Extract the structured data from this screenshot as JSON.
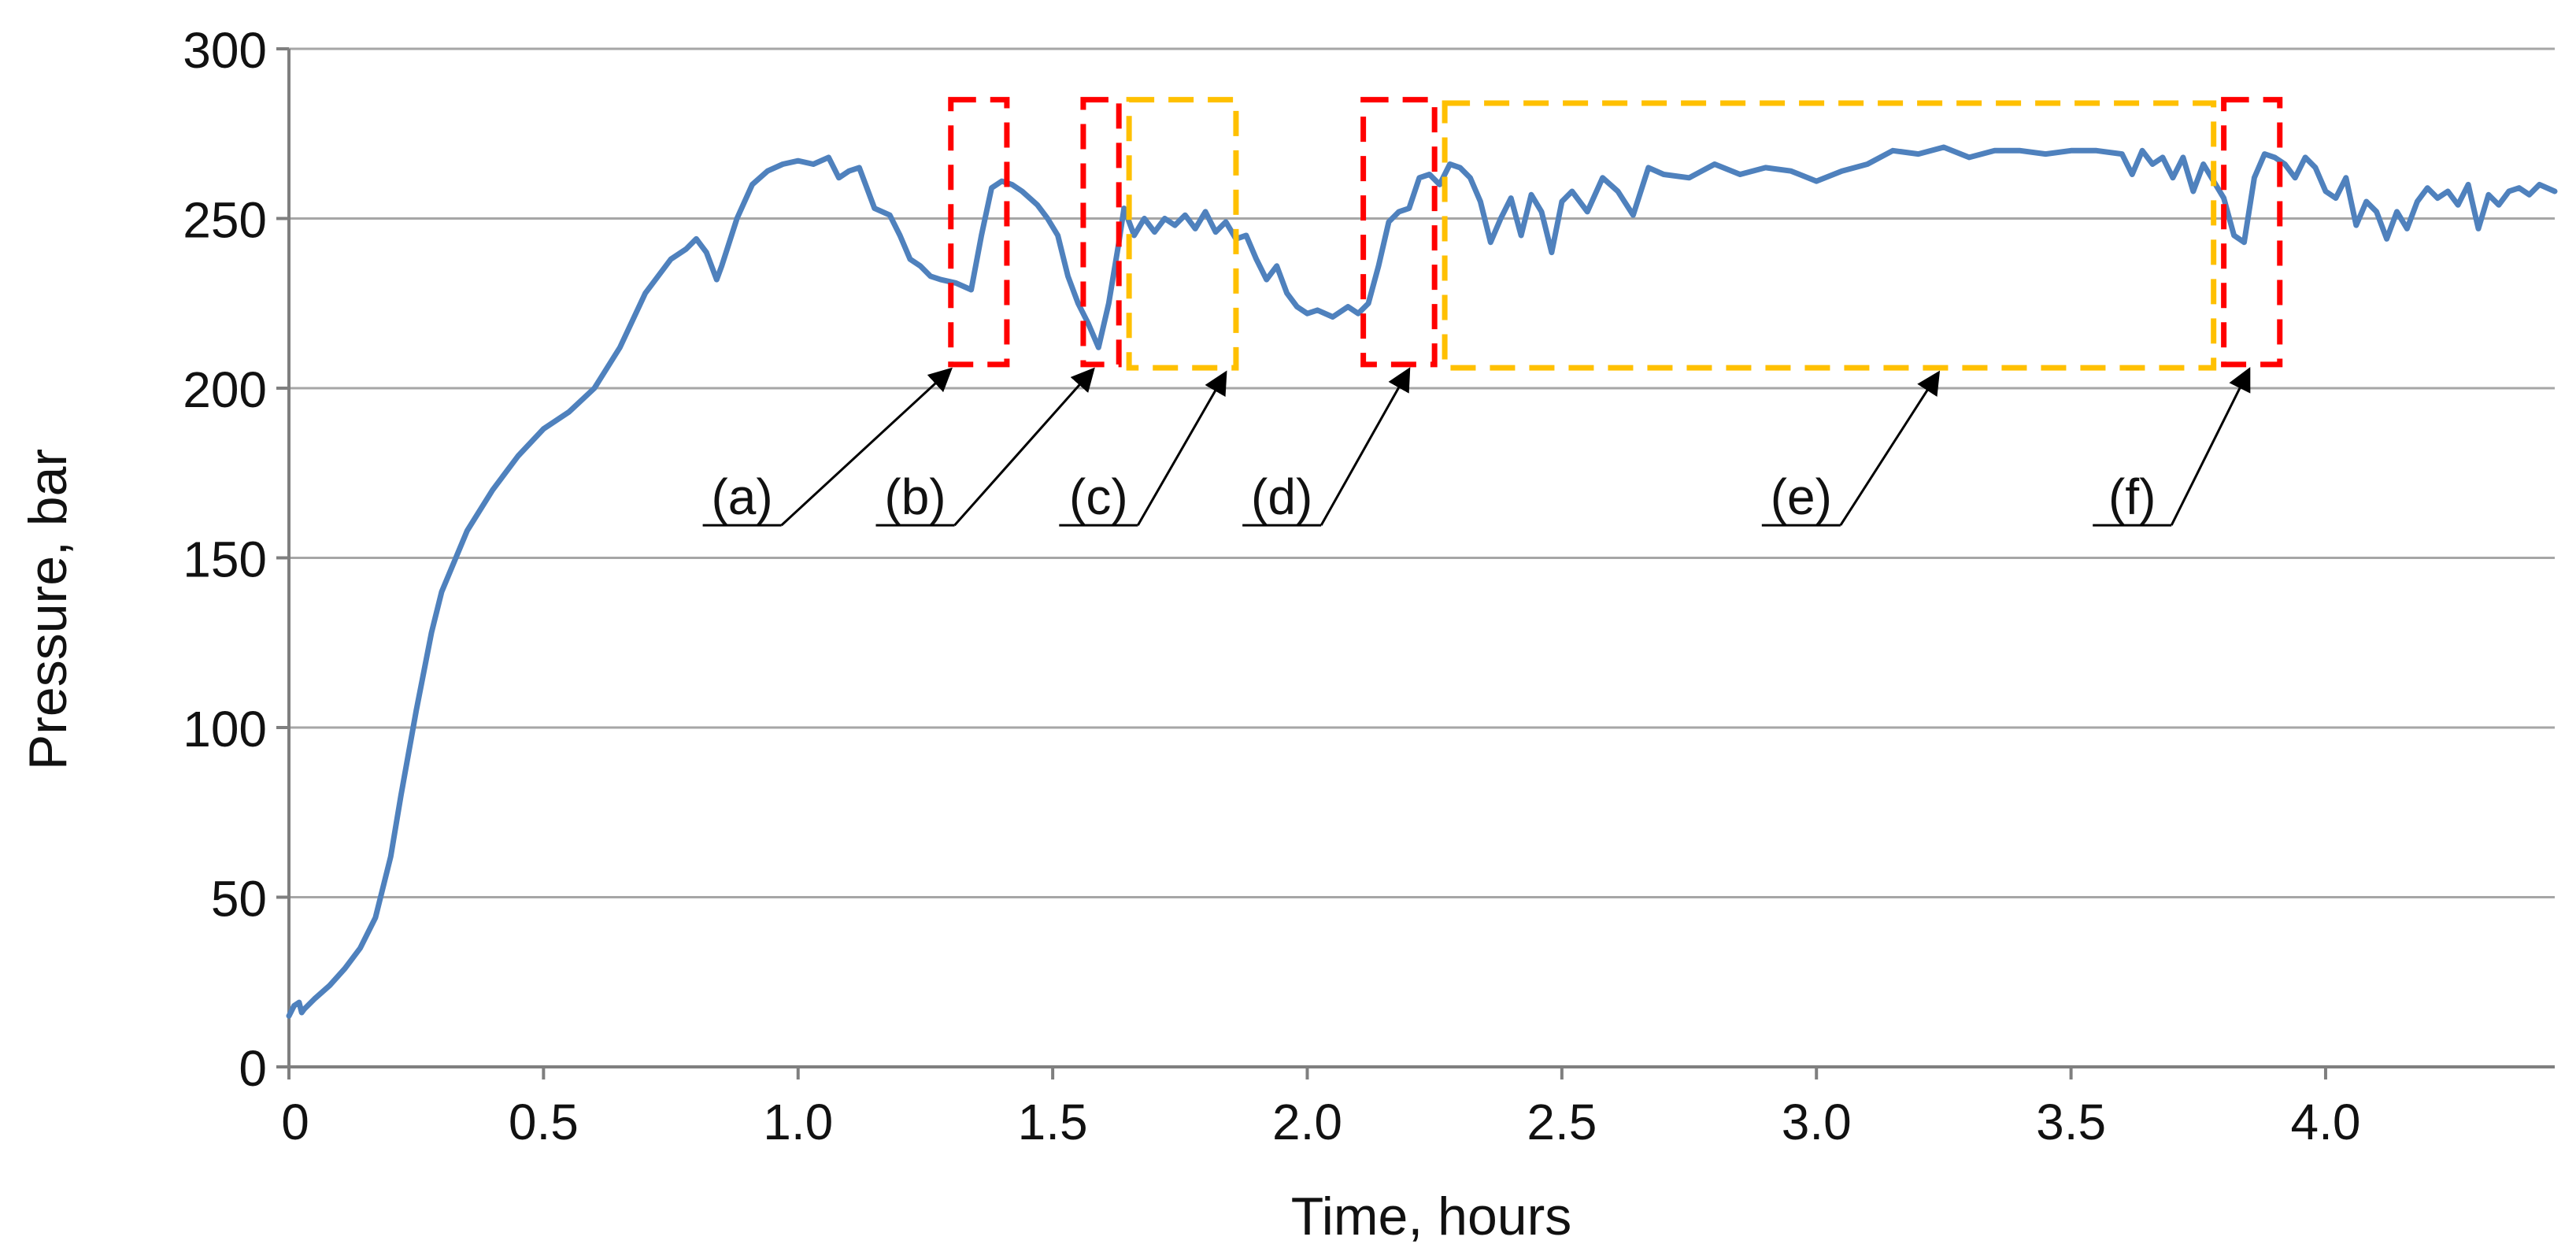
{
  "chart_data": {
    "type": "line",
    "title": "",
    "xlabel": "Time, hours",
    "ylabel": "Pressure, bar",
    "xlim": [
      0,
      4.45
    ],
    "ylim": [
      0,
      300
    ],
    "x_ticks": [
      0,
      0.5,
      1.0,
      1.5,
      2.0,
      2.5,
      3.0,
      3.5,
      4.0
    ],
    "x_tick_labels": [
      "0",
      "0.5",
      "1.0",
      "1.5",
      "2.0",
      "2.5",
      "3.0",
      "3.5",
      "4.0"
    ],
    "y_ticks": [
      0,
      50,
      100,
      150,
      200,
      250,
      300
    ],
    "y_tick_labels": [
      "0",
      "50",
      "100",
      "150",
      "200",
      "250",
      "300"
    ],
    "grid": "horizontal",
    "colors": {
      "line": "#4f81bd",
      "red_box": "#ff0000",
      "yellow_box": "#ffc000",
      "grid": "#a6a6a6",
      "axis": "#7f7f7f"
    },
    "series": [
      {
        "name": "Pressure",
        "points": [
          [
            0.0,
            15
          ],
          [
            0.01,
            18
          ],
          [
            0.02,
            19
          ],
          [
            0.025,
            16
          ],
          [
            0.03,
            17
          ],
          [
            0.05,
            20
          ],
          [
            0.08,
            24
          ],
          [
            0.11,
            29
          ],
          [
            0.14,
            35
          ],
          [
            0.17,
            44
          ],
          [
            0.2,
            62
          ],
          [
            0.22,
            80
          ],
          [
            0.25,
            105
          ],
          [
            0.28,
            128
          ],
          [
            0.3,
            140
          ],
          [
            0.35,
            158
          ],
          [
            0.4,
            170
          ],
          [
            0.45,
            180
          ],
          [
            0.5,
            188
          ],
          [
            0.55,
            193
          ],
          [
            0.6,
            200
          ],
          [
            0.65,
            212
          ],
          [
            0.7,
            228
          ],
          [
            0.75,
            238
          ],
          [
            0.78,
            241
          ],
          [
            0.8,
            244
          ],
          [
            0.82,
            240
          ],
          [
            0.84,
            232
          ],
          [
            0.85,
            236
          ],
          [
            0.88,
            250
          ],
          [
            0.91,
            260
          ],
          [
            0.94,
            264
          ],
          [
            0.97,
            266
          ],
          [
            1.0,
            267
          ],
          [
            1.03,
            266
          ],
          [
            1.06,
            268
          ],
          [
            1.08,
            262
          ],
          [
            1.1,
            264
          ],
          [
            1.12,
            265
          ],
          [
            1.15,
            253
          ],
          [
            1.18,
            251
          ],
          [
            1.2,
            245
          ],
          [
            1.22,
            238
          ],
          [
            1.24,
            236
          ],
          [
            1.26,
            233
          ],
          [
            1.28,
            232
          ],
          [
            1.31,
            231
          ],
          [
            1.34,
            229
          ],
          [
            1.36,
            245
          ],
          [
            1.38,
            259
          ],
          [
            1.4,
            261
          ],
          [
            1.42,
            260
          ],
          [
            1.44,
            258
          ],
          [
            1.47,
            254
          ],
          [
            1.49,
            250
          ],
          [
            1.51,
            245
          ],
          [
            1.53,
            233
          ],
          [
            1.55,
            225
          ],
          [
            1.57,
            219
          ],
          [
            1.59,
            212
          ],
          [
            1.61,
            225
          ],
          [
            1.63,
            243
          ],
          [
            1.64,
            253
          ],
          [
            1.66,
            245
          ],
          [
            1.68,
            250
          ],
          [
            1.7,
            246
          ],
          [
            1.72,
            250
          ],
          [
            1.74,
            248
          ],
          [
            1.76,
            251
          ],
          [
            1.78,
            247
          ],
          [
            1.8,
            252
          ],
          [
            1.82,
            246
          ],
          [
            1.84,
            249
          ],
          [
            1.86,
            244
          ],
          [
            1.88,
            245
          ],
          [
            1.9,
            238
          ],
          [
            1.92,
            232
          ],
          [
            1.94,
            236
          ],
          [
            1.96,
            228
          ],
          [
            1.98,
            224
          ],
          [
            2.0,
            222
          ],
          [
            2.02,
            223
          ],
          [
            2.05,
            221
          ],
          [
            2.08,
            224
          ],
          [
            2.1,
            222
          ],
          [
            2.12,
            225
          ],
          [
            2.14,
            236
          ],
          [
            2.16,
            249
          ],
          [
            2.18,
            252
          ],
          [
            2.2,
            253
          ],
          [
            2.22,
            262
          ],
          [
            2.24,
            263
          ],
          [
            2.26,
            260
          ],
          [
            2.28,
            266
          ],
          [
            2.3,
            265
          ],
          [
            2.32,
            262
          ],
          [
            2.34,
            255
          ],
          [
            2.36,
            243
          ],
          [
            2.38,
            250
          ],
          [
            2.4,
            256
          ],
          [
            2.42,
            245
          ],
          [
            2.44,
            257
          ],
          [
            2.46,
            252
          ],
          [
            2.48,
            240
          ],
          [
            2.5,
            255
          ],
          [
            2.52,
            258
          ],
          [
            2.55,
            252
          ],
          [
            2.58,
            262
          ],
          [
            2.61,
            258
          ],
          [
            2.64,
            251
          ],
          [
            2.67,
            265
          ],
          [
            2.7,
            263
          ],
          [
            2.75,
            262
          ],
          [
            2.8,
            266
          ],
          [
            2.85,
            263
          ],
          [
            2.9,
            265
          ],
          [
            2.95,
            264
          ],
          [
            3.0,
            261
          ],
          [
            3.05,
            264
          ],
          [
            3.1,
            266
          ],
          [
            3.15,
            270
          ],
          [
            3.2,
            269
          ],
          [
            3.25,
            271
          ],
          [
            3.3,
            268
          ],
          [
            3.35,
            270
          ],
          [
            3.4,
            270
          ],
          [
            3.45,
            269
          ],
          [
            3.5,
            270
          ],
          [
            3.55,
            270
          ],
          [
            3.6,
            269
          ],
          [
            3.62,
            263
          ],
          [
            3.64,
            270
          ],
          [
            3.66,
            266
          ],
          [
            3.68,
            268
          ],
          [
            3.7,
            262
          ],
          [
            3.72,
            268
          ],
          [
            3.74,
            258
          ],
          [
            3.76,
            266
          ],
          [
            3.78,
            261
          ],
          [
            3.8,
            256
          ],
          [
            3.82,
            245
          ],
          [
            3.84,
            243
          ],
          [
            3.86,
            262
          ],
          [
            3.88,
            269
          ],
          [
            3.9,
            268
          ],
          [
            3.92,
            266
          ],
          [
            3.94,
            262
          ],
          [
            3.96,
            268
          ],
          [
            3.98,
            265
          ],
          [
            4.0,
            258
          ],
          [
            4.02,
            256
          ],
          [
            4.04,
            262
          ],
          [
            4.06,
            248
          ],
          [
            4.08,
            255
          ],
          [
            4.1,
            252
          ],
          [
            4.12,
            244
          ],
          [
            4.14,
            252
          ],
          [
            4.16,
            247
          ],
          [
            4.18,
            255
          ],
          [
            4.2,
            259
          ],
          [
            4.22,
            256
          ],
          [
            4.24,
            258
          ],
          [
            4.26,
            254
          ],
          [
            4.28,
            260
          ],
          [
            4.3,
            247
          ],
          [
            4.32,
            257
          ],
          [
            4.34,
            254
          ],
          [
            4.36,
            258
          ],
          [
            4.38,
            259
          ],
          [
            4.4,
            257
          ],
          [
            4.42,
            260
          ],
          [
            4.45,
            258
          ]
        ]
      }
    ],
    "highlight_boxes": [
      {
        "color": "red",
        "x": [
          1.3,
          1.41
        ],
        "y": [
          207,
          285
        ]
      },
      {
        "color": "red",
        "x": [
          1.56,
          1.63
        ],
        "y": [
          207,
          285
        ]
      },
      {
        "color": "yellow",
        "x": [
          1.65,
          1.86
        ],
        "y": [
          206,
          285
        ]
      },
      {
        "color": "red",
        "x": [
          2.11,
          2.25
        ],
        "y": [
          207,
          285
        ]
      },
      {
        "color": "yellow",
        "x": [
          2.27,
          3.78
        ],
        "y": [
          206,
          284
        ]
      },
      {
        "color": "red",
        "x": [
          3.8,
          3.91
        ],
        "y": [
          207,
          285
        ]
      }
    ],
    "annotations": [
      {
        "text": "(a)",
        "label_x": 0.89,
        "label_y": 161,
        "target": [
          1.3,
          207
        ]
      },
      {
        "text": "(b)",
        "label_x": 1.23,
        "label_y": 161,
        "target": [
          1.58,
          207
        ]
      },
      {
        "text": "(c)",
        "label_x": 1.59,
        "label_y": 161,
        "target": [
          1.84,
          206
        ]
      },
      {
        "text": "(d)",
        "label_x": 1.95,
        "label_y": 161,
        "target": [
          2.2,
          207
        ]
      },
      {
        "text": "(e)",
        "label_x": 2.97,
        "label_y": 161,
        "target": [
          3.24,
          206
        ]
      },
      {
        "text": "(f)",
        "label_x": 3.62,
        "label_y": 161,
        "target": [
          3.85,
          207
        ]
      }
    ]
  }
}
